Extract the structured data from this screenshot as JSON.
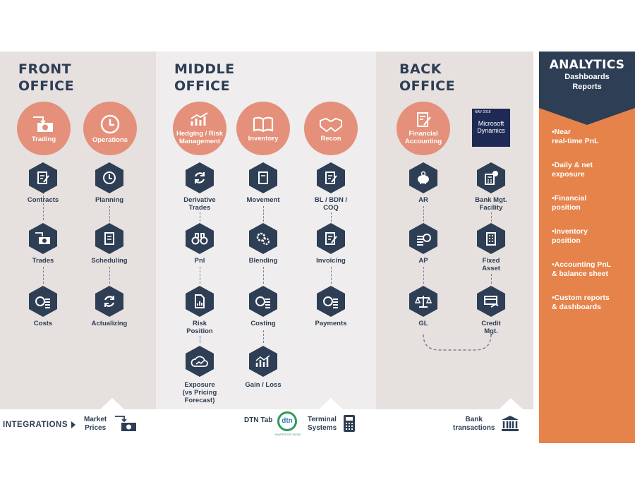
{
  "front": {
    "title": "FRONT\nOFFICE",
    "heads": [
      "Trading",
      "Operations"
    ],
    "nodes": [
      "Contracts",
      "Trades",
      "Costs",
      "Planning",
      "Scheduling",
      "Actualizing"
    ]
  },
  "middle": {
    "title": "MIDDLE\nOFFICE",
    "heads": [
      "Hedging / Risk\nManagement",
      "Inventory",
      "Recon"
    ],
    "nodes": [
      "Derivative\nTrades",
      "Pnl",
      "Risk\nPosition",
      "Exposure\n(vs Pricing\nForecast)",
      "Movement",
      "Blending",
      "Costing",
      "Gain / Loss",
      "BL / BDN /\nCOQ",
      "Invoicing",
      "Payments"
    ]
  },
  "back": {
    "title": "BACK\nOFFICE",
    "heads": [
      "Financial\nAccounting"
    ],
    "nav": {
      "version": "NAV 2018",
      "name": "Microsoft\nDynamics"
    },
    "nodes": [
      "AR",
      "AP",
      "GL",
      "Bank Mgt.\nFacility",
      "Fixed\nAsset",
      "Credit\nMgt."
    ]
  },
  "analytics": {
    "title": "ANALYTICS",
    "sub1": "Dashboards",
    "sub2": "Reports",
    "items": [
      "•Near\nreal-time PnL",
      "•Daily & net\nexposure",
      "•Financial\nposition",
      "•Inventory\nposition",
      "•Accounting PnL\n& balance sheet",
      "•Custom reports\n& dashboards"
    ]
  },
  "integrations": {
    "label": "INTEGRATIONS",
    "market": "Market\nPrices",
    "dtn_tab": "DTN Tab",
    "dtn_logo": "dtn",
    "dtn_tag": "SMARTER DECISIONS",
    "terminal": "Terminal\nSystems",
    "bank": "Bank\ntransactions"
  },
  "colors": {
    "navy": "#2d3e55",
    "salmon": "#e4907a",
    "orange": "#e5834a",
    "panel": "#e6e0df"
  }
}
